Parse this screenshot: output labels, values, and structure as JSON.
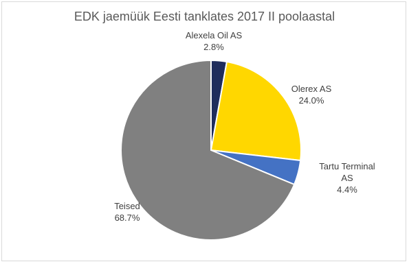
{
  "chart_data": {
    "type": "pie",
    "title": "EDK jaemüük Eesti tanklates 2017 II poolaastal",
    "categories": [
      "Alexela Oil AS",
      "Olerex AS",
      "Tartu Terminal AS",
      "Teised"
    ],
    "values": [
      2.8,
      24.0,
      4.4,
      68.7
    ],
    "value_labels": [
      "2.8%",
      "24.0%",
      "4.4%",
      "68.7%"
    ],
    "label_lines": [
      [
        "Alexela Oil AS"
      ],
      [
        "Olerex AS"
      ],
      [
        "Tartu Terminal",
        "AS"
      ],
      [
        "Teised"
      ]
    ],
    "colors": [
      "#1f2d5c",
      "#ffd700",
      "#4472c4",
      "#808080"
    ],
    "start_angle_deg": 0,
    "direction": "clockwise",
    "legend": "none",
    "data_labels": "outside"
  }
}
